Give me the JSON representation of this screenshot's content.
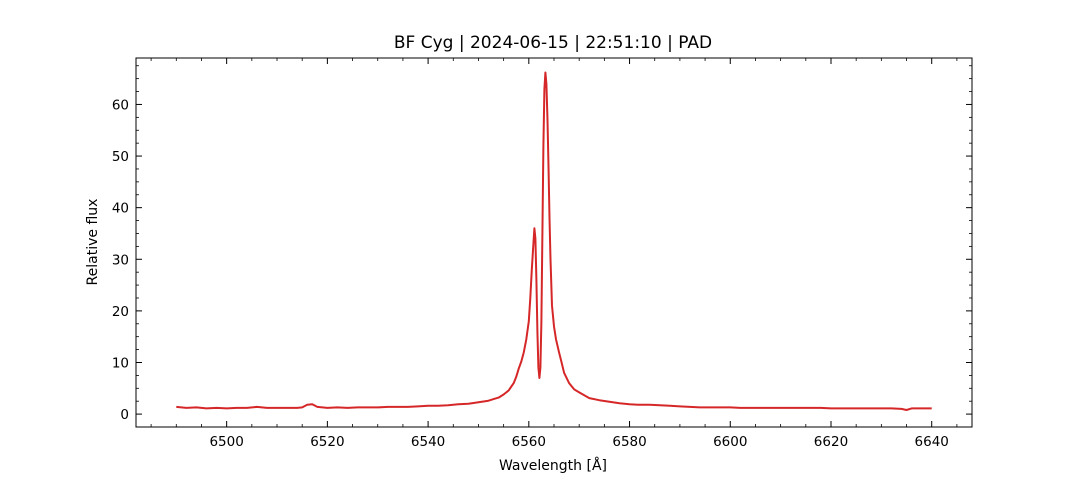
{
  "chart_data": {
    "type": "line",
    "title": "BF Cyg | 2024-06-15 | 22:51:10 | PAD",
    "xlabel": "Wavelength [Å]",
    "ylabel": "Relative flux",
    "xlim": [
      6482,
      6648
    ],
    "ylim": [
      -2.5,
      69
    ],
    "x_ticks": [
      6500,
      6520,
      6540,
      6560,
      6580,
      6600,
      6620,
      6640
    ],
    "y_ticks": [
      0,
      10,
      20,
      30,
      40,
      50,
      60
    ],
    "grid": false,
    "legend": "none",
    "series": [
      {
        "color": "#d62728",
        "x": [
          6490,
          6492,
          6494,
          6496,
          6498,
          6500,
          6502,
          6504,
          6506,
          6508,
          6510,
          6512,
          6514,
          6515,
          6516,
          6517,
          6518,
          6520,
          6522,
          6524,
          6526,
          6528,
          6530,
          6532,
          6534,
          6536,
          6538,
          6540,
          6542,
          6544,
          6546,
          6548,
          6550,
          6552,
          6553,
          6554,
          6555,
          6556,
          6557,
          6557.5,
          6558,
          6558.5,
          6559,
          6559.5,
          6560,
          6560.3,
          6560.6,
          6560.9,
          6561.1,
          6561.3,
          6561.5,
          6561.7,
          6561.9,
          6562.1,
          6562.3,
          6562.5,
          6562.7,
          6562.9,
          6563.1,
          6563.3,
          6563.5,
          6563.7,
          6563.9,
          6564.1,
          6564.3,
          6564.6,
          6565,
          6565.4,
          6566,
          6566.5,
          6567,
          6568,
          6569,
          6570,
          6572,
          6574,
          6576,
          6578,
          6580,
          6582,
          6584,
          6586,
          6588,
          6590,
          6592,
          6594,
          6596,
          6598,
          6600,
          6602,
          6604,
          6606,
          6608,
          6610,
          6612,
          6614,
          6616,
          6618,
          6620,
          6622,
          6624,
          6626,
          6628,
          6630,
          6632,
          6634,
          6635,
          6636,
          6638,
          6640
        ],
        "y": [
          1.4,
          1.2,
          1.3,
          1.1,
          1.2,
          1.1,
          1.2,
          1.2,
          1.4,
          1.2,
          1.2,
          1.2,
          1.2,
          1.3,
          1.8,
          1.9,
          1.4,
          1.2,
          1.3,
          1.2,
          1.3,
          1.3,
          1.3,
          1.4,
          1.4,
          1.4,
          1.5,
          1.6,
          1.6,
          1.7,
          1.9,
          2.0,
          2.3,
          2.6,
          2.9,
          3.2,
          3.8,
          4.6,
          6.0,
          7.2,
          8.8,
          10.2,
          12.0,
          14.5,
          18.0,
          22.5,
          28.0,
          33.0,
          36.0,
          34.0,
          26.0,
          16.0,
          9.0,
          7.0,
          9.0,
          18.0,
          35.0,
          52.0,
          63.0,
          66.2,
          64.0,
          57.0,
          48.0,
          38.0,
          30.0,
          21.0,
          17.0,
          14.5,
          12.0,
          10.0,
          8.0,
          6.0,
          4.8,
          4.2,
          3.1,
          2.7,
          2.4,
          2.1,
          1.9,
          1.8,
          1.8,
          1.7,
          1.6,
          1.5,
          1.4,
          1.3,
          1.3,
          1.3,
          1.3,
          1.2,
          1.2,
          1.2,
          1.2,
          1.2,
          1.2,
          1.2,
          1.2,
          1.2,
          1.1,
          1.1,
          1.1,
          1.1,
          1.1,
          1.1,
          1.1,
          1.0,
          0.8,
          1.1,
          1.1,
          1.1
        ]
      }
    ]
  }
}
